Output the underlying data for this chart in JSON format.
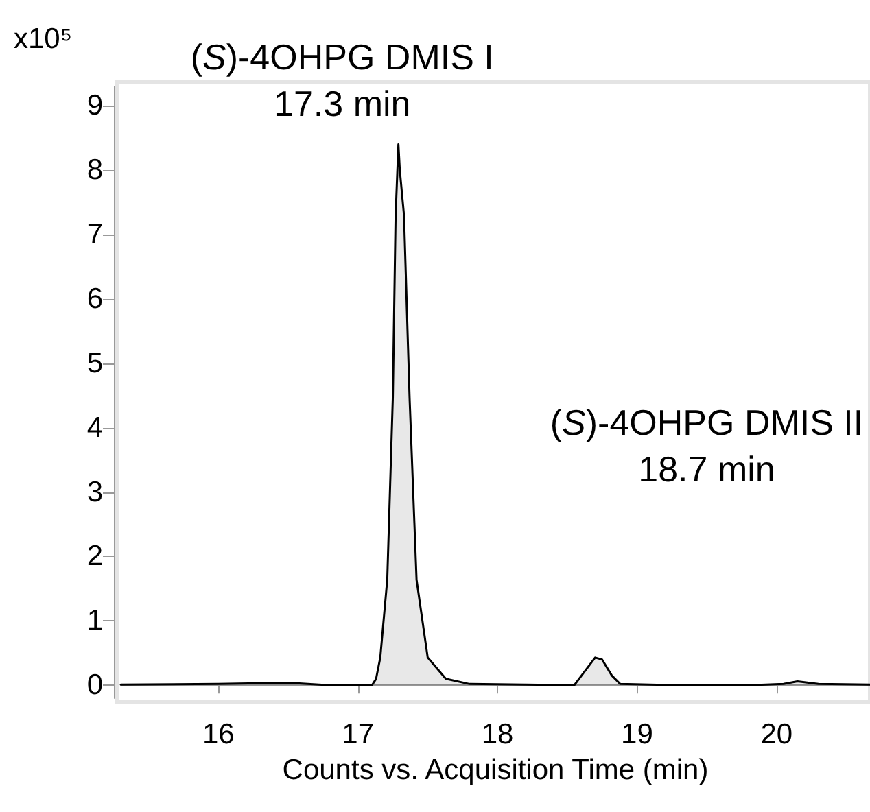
{
  "chart_data": {
    "type": "area",
    "ylabel": "x10⁵",
    "xlabel": "Counts vs. Acquisition Time (min)",
    "annotations": [
      {
        "text": "(S)-4OHPG DMIS I\n17.3 min",
        "x": 17.3,
        "y": 8.4
      },
      "(S)-4OHPG DMIS II\n18.7 min"
    ],
    "x": [
      15.3,
      16.0,
      16.5,
      16.8,
      17.1,
      17.13,
      17.16,
      17.21,
      17.25,
      17.27,
      17.29,
      17.3,
      17.33,
      17.37,
      17.42,
      17.5,
      17.63,
      17.8,
      18.2,
      18.55,
      18.62,
      18.7,
      18.75,
      18.82,
      18.88,
      19.3,
      19.8,
      20.05,
      20.15,
      20.3,
      20.67
    ],
    "series": [
      {
        "color": "#000000",
        "values": [
          0.01,
          0.02,
          0.04,
          0.0,
          0.0,
          0.1,
          0.43,
          1.64,
          4.47,
          7.3,
          8.4,
          8.0,
          7.3,
          4.47,
          1.64,
          0.43,
          0.1,
          0.02,
          0.01,
          0.0,
          0.2,
          0.43,
          0.4,
          0.15,
          0.02,
          0.0,
          0.0,
          0.02,
          0.06,
          0.02,
          0.01
        ]
      }
    ],
    "xlim": [
      15.3,
      20.67
    ],
    "xticks": [
      16,
      17,
      18,
      19,
      20
    ],
    "ylim": [
      -0.2,
      9.3
    ],
    "yticks": [
      0,
      1,
      2,
      3,
      4,
      5,
      6,
      7,
      8,
      9
    ],
    "marker": "none",
    "line_style": "solid"
  }
}
